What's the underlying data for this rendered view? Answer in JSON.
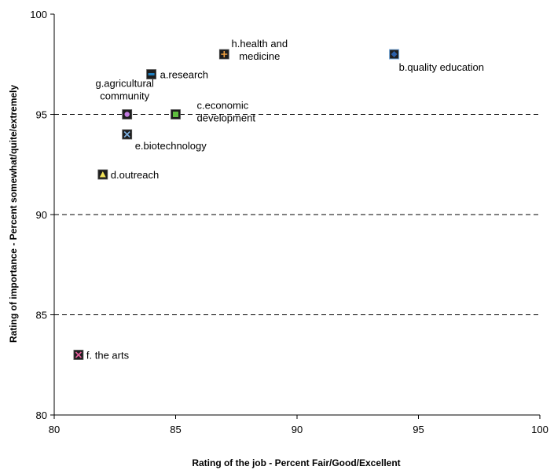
{
  "chart_data": {
    "type": "scatter",
    "xlabel": "Rating of the job - Percent Fair/Good/Excellent",
    "ylabel": "Rating of importance - Percent somewhat/quite/extremely",
    "xlim": [
      80,
      100
    ],
    "ylim": [
      80,
      100
    ],
    "xticks": [
      "80",
      "85",
      "90",
      "95",
      "100"
    ],
    "yticks": [
      "80",
      "85",
      "90",
      "95",
      "100"
    ],
    "grid": "dashed horizontal",
    "points": [
      {
        "name": "a.research",
        "x": 84,
        "y": 97,
        "marker": "dash",
        "color": "#1f7fbf"
      },
      {
        "name": "b.quality education",
        "x": 94,
        "y": 98,
        "marker": "diamond",
        "color": "#2a5fa8"
      },
      {
        "name": "c.economic development",
        "x": 85,
        "y": 95,
        "marker": "square",
        "color": "#5fbf3f"
      },
      {
        "name": "d.outreach",
        "x": 82,
        "y": 92,
        "marker": "triangle",
        "color": "#f2e35a"
      },
      {
        "name": "e.biotechnology",
        "x": 83,
        "y": 94,
        "marker": "x",
        "color": "#7fb2e5"
      },
      {
        "name": "f. the arts",
        "x": 81,
        "y": 83,
        "marker": "x",
        "color": "#e55b9a"
      },
      {
        "name": "g.agricultural community",
        "x": 83,
        "y": 95,
        "marker": "circle",
        "color": "#c27be0"
      },
      {
        "name": "h.health and medicine",
        "x": 87,
        "y": 98,
        "marker": "plus",
        "color": "#f0a040"
      }
    ]
  }
}
